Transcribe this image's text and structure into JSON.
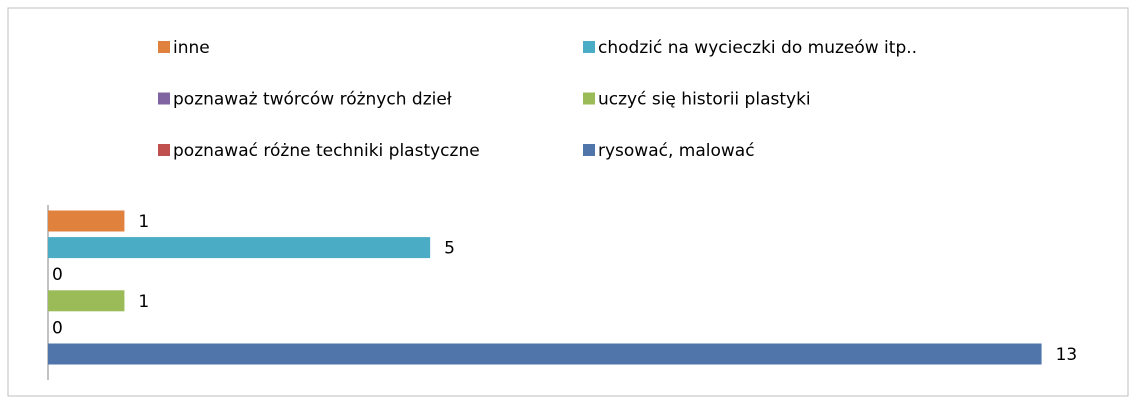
{
  "chart_data": {
    "type": "bar",
    "orientation": "horizontal",
    "categories": [
      null
    ],
    "series": [
      {
        "name": "inne",
        "color": "#e0823d",
        "values": [
          1
        ]
      },
      {
        "name": "chodzić na wycieczki do muzeów itp..",
        "color": "#4bacc6",
        "values": [
          5
        ]
      },
      {
        "name": "poznaważ twórców różnych dzieł",
        "color": "#8064a2",
        "values": [
          0
        ]
      },
      {
        "name": "uczyć się historii plastyki",
        "color": "#9bbb59",
        "values": [
          1
        ]
      },
      {
        "name": "poznawać różne techniki plastyczne",
        "color": "#c0504d",
        "values": [
          0
        ]
      },
      {
        "name": "rysować, malować",
        "color": "#4f75aa",
        "values": [
          13
        ]
      }
    ],
    "xlim": [
      0,
      14
    ],
    "legend": "top",
    "data_labels": true
  }
}
